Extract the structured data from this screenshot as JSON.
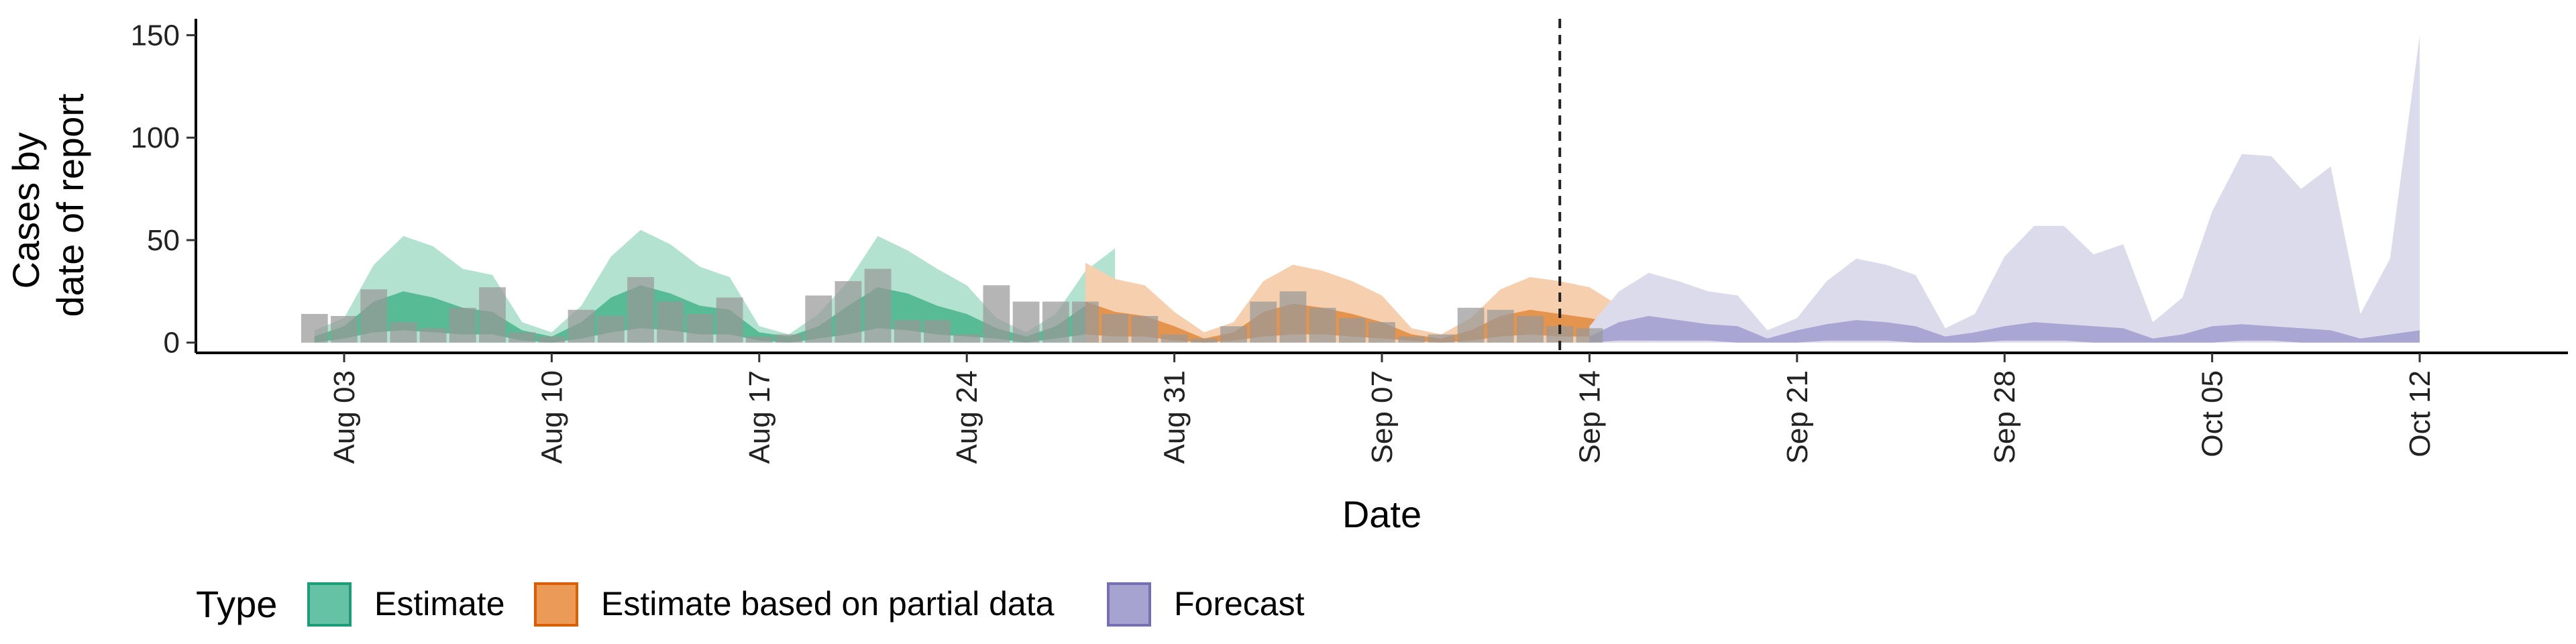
{
  "chart_data": {
    "type": "area",
    "xlabel": "Date",
    "ylabel_lines": [
      "Cases by",
      "date of report"
    ],
    "ylim": [
      -5,
      158
    ],
    "yticks": [
      0,
      50,
      100,
      150
    ],
    "xlim": [
      "2020-07-29",
      "2020-10-17"
    ],
    "xticks": [
      {
        "date": "2020-08-03",
        "label": "Aug 03"
      },
      {
        "date": "2020-08-10",
        "label": "Aug 10"
      },
      {
        "date": "2020-08-17",
        "label": "Aug 17"
      },
      {
        "date": "2020-08-24",
        "label": "Aug 24"
      },
      {
        "date": "2020-08-31",
        "label": "Aug 31"
      },
      {
        "date": "2020-09-07",
        "label": "Sep 07"
      },
      {
        "date": "2020-09-14",
        "label": "Sep 14"
      },
      {
        "date": "2020-09-21",
        "label": "Sep 21"
      },
      {
        "date": "2020-09-28",
        "label": "Sep 28"
      },
      {
        "date": "2020-10-05",
        "label": "Oct 05"
      },
      {
        "date": "2020-10-12",
        "label": "Oct 12"
      }
    ],
    "forecast_line_date": "2020-09-13",
    "legend": {
      "title": "Type",
      "position": "bottom",
      "items": [
        {
          "label": "Estimate",
          "fill": "#66c2a5",
          "stroke": "#1b9e77"
        },
        {
          "label": "Estimate based on partial data",
          "fill": "#eb9a57",
          "stroke": "#d95f02"
        },
        {
          "label": "Forecast",
          "fill": "#a7a3d0",
          "stroke": "#7570b3"
        }
      ]
    },
    "colors": {
      "estimate_outer": "#b3e2d1",
      "estimate_inner": "#57bb95",
      "partial_outer": "#f6cfae",
      "partial_inner": "#e4944d",
      "forecast_outer": "#dcdbec",
      "forecast_inner": "#aaa6d4",
      "bars": "#999999"
    },
    "series": [
      {
        "name": "Estimate",
        "start_date": "2020-08-02",
        "upper_outer": [
          6,
          12,
          38,
          52,
          47,
          36,
          33,
          10,
          5,
          18,
          42,
          55,
          48,
          37,
          32,
          8,
          4,
          14,
          30,
          52,
          45,
          36,
          28,
          12,
          5,
          14,
          35,
          46
        ],
        "upper_inner": [
          3,
          8,
          20,
          25,
          22,
          17,
          15,
          6,
          3,
          10,
          22,
          28,
          24,
          18,
          16,
          5,
          3,
          8,
          18,
          27,
          24,
          18,
          14,
          7,
          3,
          8,
          18,
          22
        ],
        "lower_inner": [
          0,
          2,
          5,
          6,
          5,
          4,
          4,
          1,
          0,
          2,
          5,
          7,
          6,
          4,
          4,
          1,
          0,
          2,
          4,
          7,
          6,
          4,
          3,
          2,
          0,
          2,
          4,
          6
        ],
        "lower_outer": [
          0,
          0,
          0,
          0,
          0,
          0,
          0,
          0,
          0,
          0,
          0,
          0,
          0,
          0,
          0,
          0,
          0,
          0,
          0,
          0,
          0,
          0,
          0,
          0,
          0,
          0,
          0,
          0
        ]
      },
      {
        "name": "Estimate based on partial data",
        "start_date": "2020-08-28",
        "upper_outer": [
          39,
          31,
          28,
          15,
          5,
          10,
          30,
          38,
          35,
          30,
          23,
          7,
          4,
          12,
          26,
          32,
          30,
          27,
          18,
          8
        ],
        "upper_inner": [
          20,
          15,
          13,
          8,
          2,
          5,
          15,
          19,
          17,
          14,
          10,
          4,
          2,
          6,
          13,
          16,
          14,
          12,
          9,
          4
        ],
        "lower_inner": [
          4,
          3,
          3,
          1,
          0,
          1,
          3,
          4,
          4,
          3,
          2,
          1,
          0,
          1,
          3,
          4,
          3,
          3,
          2,
          1
        ],
        "lower_outer": [
          0,
          0,
          0,
          0,
          0,
          0,
          0,
          0,
          0,
          0,
          0,
          0,
          0,
          0,
          0,
          0,
          0,
          0,
          0,
          0
        ]
      },
      {
        "name": "Forecast",
        "start_date": "2020-09-14",
        "upper_outer": [
          8,
          25,
          34,
          30,
          25,
          23,
          6,
          12,
          30,
          41,
          38,
          33,
          7,
          14,
          42,
          57,
          57,
          43,
          48,
          10,
          22,
          64,
          92,
          91,
          75,
          86,
          14,
          41,
          150
        ],
        "upper_inner": [
          3,
          10,
          13,
          11,
          9,
          8,
          2,
          6,
          9,
          11,
          10,
          8,
          3,
          5,
          8,
          10,
          9,
          8,
          7,
          2,
          4,
          8,
          9,
          8,
          7,
          6,
          2,
          4,
          6
        ],
        "lower_inner": [
          0,
          1,
          1,
          1,
          1,
          0,
          0,
          0,
          1,
          1,
          1,
          0,
          0,
          0,
          1,
          1,
          1,
          0,
          0,
          0,
          0,
          0,
          1,
          1,
          0,
          0,
          0,
          0,
          0
        ],
        "lower_outer": [
          0,
          0,
          0,
          0,
          0,
          0,
          0,
          0,
          0,
          0,
          0,
          0,
          0,
          0,
          0,
          0,
          0,
          0,
          0,
          0,
          0,
          0,
          0,
          0,
          0,
          0,
          0,
          0,
          0
        ]
      }
    ],
    "bars": {
      "name": "Reported cases",
      "start_date": "2020-08-02",
      "values": [
        14,
        13,
        26,
        10,
        7,
        17,
        27,
        5,
        3,
        16,
        13,
        32,
        20,
        14,
        22,
        3,
        4,
        23,
        30,
        36,
        11,
        11,
        4,
        28,
        20,
        20,
        20,
        14,
        13,
        4,
        2,
        8,
        20,
        25,
        17,
        12,
        10,
        3,
        4,
        17,
        16,
        13,
        8,
        7
      ]
    }
  }
}
